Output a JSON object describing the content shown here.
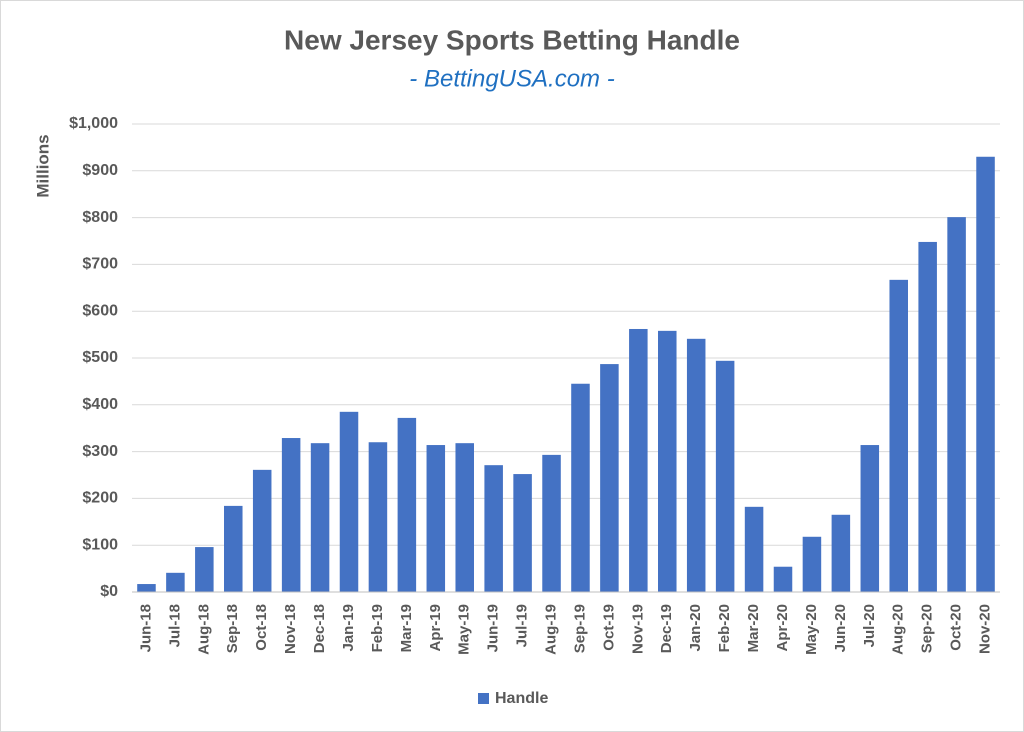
{
  "chart_data": {
    "type": "bar",
    "title": "New Jersey Sports Betting Handle",
    "subtitle": "- BettingUSA.com -",
    "y_label": "Millions",
    "categories": [
      "Jun-18",
      "Jul-18",
      "Aug-18",
      "Sep-18",
      "Oct-18",
      "Nov-18",
      "Dec-18",
      "Jan-19",
      "Feb-19",
      "Mar-19",
      "Apr-19",
      "May-19",
      "Jun-19",
      "Jul-19",
      "Aug-19",
      "Sep-19",
      "Oct-19",
      "Nov-19",
      "Dec-19",
      "Jan-20",
      "Feb-20",
      "Mar-20",
      "Apr-20",
      "May-20",
      "Jun-20",
      "Jul-20",
      "Aug-20",
      "Sep-20",
      "Oct-20",
      "Nov-20"
    ],
    "series": [
      {
        "name": "Handle",
        "color": "#4472c4",
        "values": [
          17,
          41,
          96,
          184,
          261,
          329,
          318,
          385,
          320,
          372,
          314,
          318,
          271,
          252,
          293,
          445,
          487,
          562,
          558,
          541,
          494,
          182,
          54,
          118,
          165,
          314,
          667,
          748,
          801,
          930
        ]
      }
    ],
    "ylim": [
      0,
      1000
    ],
    "yticks": [
      {
        "value": 0,
        "label": "$0"
      },
      {
        "value": 100,
        "label": "$100"
      },
      {
        "value": 200,
        "label": "$200"
      },
      {
        "value": 300,
        "label": "$300"
      },
      {
        "value": 400,
        "label": "$400"
      },
      {
        "value": 500,
        "label": "$500"
      },
      {
        "value": 600,
        "label": "$600"
      },
      {
        "value": 700,
        "label": "$700"
      },
      {
        "value": 800,
        "label": "$800"
      },
      {
        "value": 900,
        "label": "$900"
      },
      {
        "value": 1000,
        "label": "$1,000"
      }
    ],
    "grid": true,
    "legend": "bottom"
  }
}
